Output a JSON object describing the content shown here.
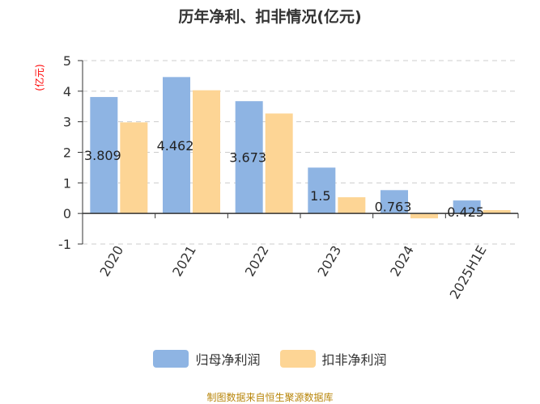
{
  "title": "历年净利、扣非情况(亿元)",
  "unit_label": "(亿元)",
  "source": "制图数据来自恒生聚源数据库",
  "colors": {
    "series1": "#8eb4e3",
    "series2": "#fdd595",
    "unit": "#ff0000",
    "source": "#b8860b"
  },
  "chart_data": {
    "type": "bar",
    "categories": [
      "2020",
      "2021",
      "2022",
      "2023",
      "2024",
      "2025H1E"
    ],
    "series": [
      {
        "name": "归母净利润",
        "values": [
          3.809,
          4.462,
          3.673,
          1.5,
          0.763,
          0.425
        ],
        "labels": [
          "3.809",
          "4.462",
          "3.673",
          "1.5",
          "0.763",
          "0.425"
        ]
      },
      {
        "name": "扣非净利润",
        "values": [
          2.98,
          4.03,
          3.27,
          0.53,
          -0.16,
          0.11
        ]
      }
    ],
    "yticks": [
      "-1",
      "0",
      "1",
      "2",
      "3",
      "4",
      "5"
    ],
    "ylim": [
      -1,
      5
    ],
    "grid": true,
    "legend": "bottom"
  }
}
